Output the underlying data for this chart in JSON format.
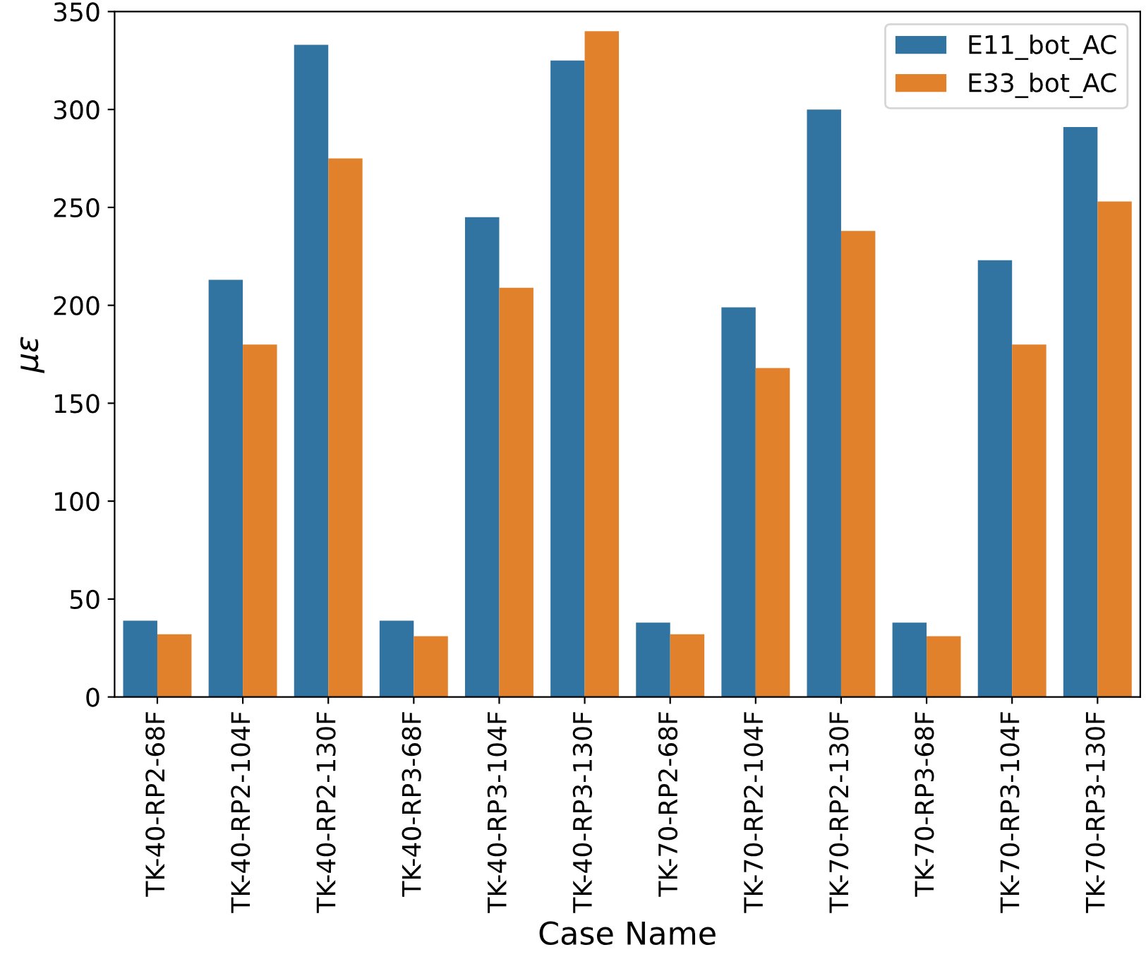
{
  "chart_data": {
    "type": "bar",
    "xlabel": "Case Name",
    "ylabel": "με",
    "categories": [
      "TK-40-RP2-68F",
      "TK-40-RP2-104F",
      "TK-40-RP2-130F",
      "TK-40-RP3-68F",
      "TK-40-RP3-104F",
      "TK-40-RP3-130F",
      "TK-70-RP2-68F",
      "TK-70-RP2-104F",
      "TK-70-RP2-130F",
      "TK-70-RP3-68F",
      "TK-70-RP3-104F",
      "TK-70-RP3-130F"
    ],
    "series": [
      {
        "name": "E11_bot_AC",
        "color": "#3274a1",
        "values": [
          39,
          213,
          333,
          39,
          245,
          325,
          38,
          199,
          300,
          38,
          223,
          291
        ]
      },
      {
        "name": "E33_bot_AC",
        "color": "#e1812c",
        "values": [
          32,
          180,
          275,
          31,
          209,
          340,
          32,
          168,
          238,
          31,
          180,
          253
        ]
      }
    ],
    "ylim": [
      0,
      350
    ],
    "yticks": [
      0,
      50,
      100,
      150,
      200,
      250,
      300,
      350
    ],
    "grid": false,
    "legend": "top right"
  }
}
